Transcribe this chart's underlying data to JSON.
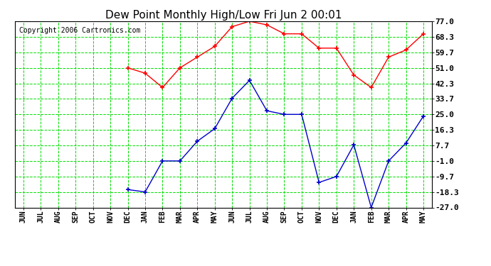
{
  "title": "Dew Point Monthly High/Low Fri Jun 2 00:01",
  "copyright": "Copyright 2006 Cartronics.com",
  "x_labels": [
    "JUN",
    "JUL",
    "AUG",
    "SEP",
    "OCT",
    "NOV",
    "DEC",
    "JAN",
    "FEB",
    "MAR",
    "APR",
    "MAY",
    "JUN",
    "JUL",
    "AUG",
    "SEP",
    "OCT",
    "NOV",
    "DEC",
    "JAN",
    "FEB",
    "MAR",
    "APR",
    "MAY"
  ],
  "high_values": [
    null,
    null,
    null,
    null,
    null,
    null,
    51.0,
    48.0,
    40.0,
    51.0,
    57.0,
    63.0,
    74.0,
    77.0,
    75.0,
    70.0,
    70.0,
    62.0,
    62.0,
    47.0,
    40.0,
    57.0,
    61.0,
    70.0
  ],
  "low_values": [
    null,
    null,
    null,
    null,
    null,
    null,
    -17.0,
    -18.3,
    -1.0,
    -1.0,
    10.0,
    17.0,
    34.0,
    44.0,
    27.0,
    25.0,
    25.0,
    -13.0,
    -9.7,
    8.0,
    -27.0,
    -1.0,
    9.0,
    24.0
  ],
  "y_ticks": [
    -27.0,
    -18.3,
    -9.7,
    -1.0,
    7.7,
    16.3,
    25.0,
    33.7,
    42.3,
    51.0,
    59.7,
    68.3,
    77.0
  ],
  "y_min": -27.0,
  "y_max": 77.0,
  "high_color": "#ff0000",
  "low_color": "#0000cc",
  "grid_color": "#00dd00",
  "bg_color": "#ffffff",
  "marker": "+",
  "title_fontsize": 11,
  "copyright_fontsize": 7,
  "tick_fontsize": 8,
  "xtick_fontsize": 7
}
